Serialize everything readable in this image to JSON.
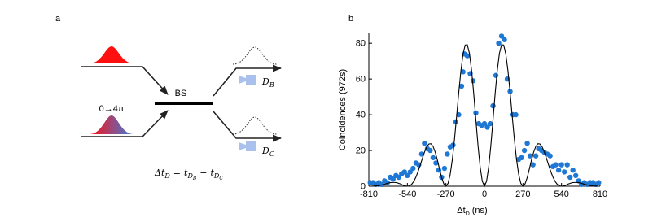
{
  "diagram": {
    "panel_label": "a",
    "beam_splitter": "BS",
    "phase": "0→4π",
    "detectors": [
      {
        "name": "D",
        "sub": "B"
      },
      {
        "name": "D",
        "sub": "C"
      }
    ],
    "formula": {
      "lhs": "Δt",
      "lhs_sub": "D",
      "eq": "=",
      "t1": "t",
      "t1_sub": "D",
      "t1_subsub": "B",
      "minus": "−",
      "t2": "t",
      "t2_sub": "D",
      "t2_subsub": "C"
    }
  },
  "chart_data": {
    "type": "scatter",
    "panel_label": "b",
    "ylabel": "Coincidences (972s)",
    "xlabel": {
      "main": "Δt",
      "sub": "D",
      "unit": "(ns)"
    },
    "xlim": [
      -810,
      810
    ],
    "ylim": [
      0,
      86
    ],
    "xticks": [
      -810,
      -540,
      -270,
      0,
      270,
      540,
      810
    ],
    "yticks": [
      0,
      20,
      40,
      60,
      80
    ],
    "series": [
      {
        "type": "scatter",
        "color": "#1f78d4",
        "x": [
          -800,
          -780,
          -760,
          -740,
          -720,
          -700,
          -680,
          -660,
          -640,
          -620,
          -600,
          -580,
          -560,
          -540,
          -520,
          -500,
          -480,
          -460,
          -440,
          -420,
          -400,
          -380,
          -360,
          -340,
          -320,
          -300,
          -280,
          -260,
          -240,
          -220,
          -200,
          -180,
          -160,
          -150,
          -140,
          -120,
          -100,
          -80,
          -60,
          -40,
          -20,
          0,
          20,
          40,
          60,
          80,
          100,
          120,
          140,
          160,
          180,
          200,
          220,
          240,
          260,
          280,
          300,
          320,
          340,
          360,
          380,
          400,
          420,
          440,
          460,
          480,
          500,
          520,
          540,
          560,
          580,
          600,
          620,
          640,
          660,
          680,
          700,
          720,
          740,
          760,
          780,
          800
        ],
        "values": [
          2,
          2,
          1,
          2,
          1,
          3,
          2,
          5,
          4,
          6,
          5,
          7,
          8,
          6,
          8,
          10,
          13,
          12,
          18,
          24,
          21,
          20,
          16,
          13,
          9,
          5,
          10,
          18,
          22,
          23,
          36,
          40,
          56,
          64,
          74,
          73,
          63,
          59,
          41,
          35,
          34,
          35,
          33,
          35,
          45,
          62,
          80,
          84,
          82,
          60,
          53,
          40,
          40,
          15,
          16,
          20,
          24,
          17,
          12,
          17,
          21,
          20,
          19,
          18,
          17,
          11,
          12,
          9,
          12,
          8,
          12,
          5,
          9,
          6,
          3,
          1,
          2,
          1,
          2,
          2,
          1,
          2
        ]
      },
      {
        "type": "line",
        "color": "#000000",
        "x": [
          -810,
          -795,
          -780,
          -765,
          -750,
          -735,
          -720,
          -705,
          -690,
          -675,
          -660,
          -645,
          -630,
          -615,
          -600,
          -585,
          -570,
          -555,
          -540,
          -525,
          -510,
          -495,
          -480,
          -465,
          -450,
          -435,
          -420,
          -405,
          -390,
          -375,
          -360,
          -345,
          -330,
          -315,
          -300,
          -285,
          -270,
          -255,
          -240,
          -225,
          -210,
          -195,
          -180,
          -165,
          -150,
          -135,
          -120,
          -105,
          -90,
          -75,
          -60,
          -45,
          -30,
          -15,
          0,
          15,
          30,
          45,
          60,
          75,
          90,
          105,
          120,
          135,
          150,
          165,
          180,
          195,
          210,
          225,
          240,
          255,
          270,
          285,
          300,
          315,
          330,
          345,
          360,
          375,
          390,
          405,
          420,
          435,
          450,
          465,
          480,
          495,
          510,
          525,
          540,
          555,
          570,
          585,
          600,
          615,
          630,
          645,
          660,
          675,
          690,
          705,
          720,
          735,
          750,
          765,
          780,
          795,
          810
        ],
        "values": [
          0,
          0,
          0.1,
          0.1,
          0.3,
          0.5,
          0.7,
          1.0,
          1.4,
          1.7,
          2.0,
          2.1,
          2.1,
          2.0,
          1.6,
          1.2,
          0.6,
          0.2,
          0,
          0.2,
          1.1,
          2.7,
          5.1,
          8.2,
          11.8,
          15.5,
          19.1,
          21.9,
          23.6,
          23.8,
          22.3,
          19.1,
          14.8,
          9.7,
          4.9,
          1.4,
          0,
          1.6,
          6.6,
          14.9,
          26.1,
          39.0,
          52.3,
          64.5,
          73.8,
          79.0,
          79.2,
          74.3,
          64.8,
          51.8,
          37.1,
          22.8,
          10.8,
          2.8,
          0,
          2.8,
          10.8,
          22.8,
          37.1,
          51.8,
          64.8,
          74.3,
          79.2,
          79.0,
          73.8,
          64.5,
          52.3,
          39.0,
          26.1,
          14.9,
          6.6,
          1.6,
          0,
          1.4,
          4.9,
          9.7,
          14.8,
          19.1,
          22.3,
          23.8,
          23.6,
          21.9,
          19.1,
          15.5,
          11.8,
          8.2,
          5.1,
          2.7,
          1.1,
          0.2,
          0,
          0.2,
          0.6,
          1.2,
          1.6,
          2.0,
          2.1,
          2.1,
          2.0,
          1.7,
          1.4,
          1.0,
          0.7,
          0.5,
          0.3,
          0.1,
          0.1,
          0,
          0
        ]
      }
    ]
  }
}
